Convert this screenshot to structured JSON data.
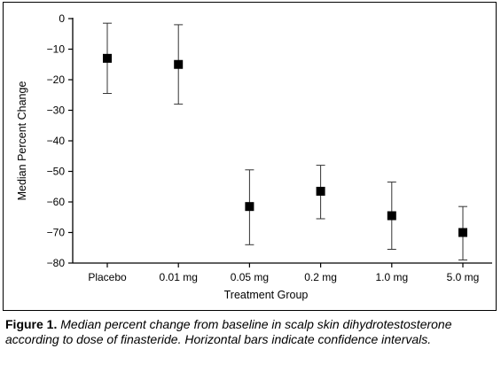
{
  "chart_data": {
    "type": "scatter",
    "categories": [
      "Placebo",
      "0.01 mg",
      "0.05 mg",
      "0.2 mg",
      "1.0 mg",
      "5.0 mg"
    ],
    "values": [
      -13,
      -15,
      -61.5,
      -56.5,
      -64.5,
      -70
    ],
    "ci_upper": [
      -1.5,
      -2,
      -49.5,
      -48,
      -53.5,
      -61.5
    ],
    "ci_lower": [
      -24.5,
      -28,
      -74,
      -65.5,
      -75.5,
      -79
    ],
    "xlabel": "Treatment Group",
    "ylabel": "Median Percent Change",
    "ylim": [
      -80,
      0
    ],
    "yticks": [
      0,
      -10,
      -20,
      -30,
      -40,
      -50,
      -60,
      -70,
      -80
    ],
    "grid": false,
    "marker": "square",
    "marker_color": "#000000"
  },
  "caption": {
    "label": "Figure 1.",
    "text": "Median percent change from baseline in scalp skin dihydrotestosterone according to dose of finasteride. Horizontal bars indicate confidence intervals."
  }
}
